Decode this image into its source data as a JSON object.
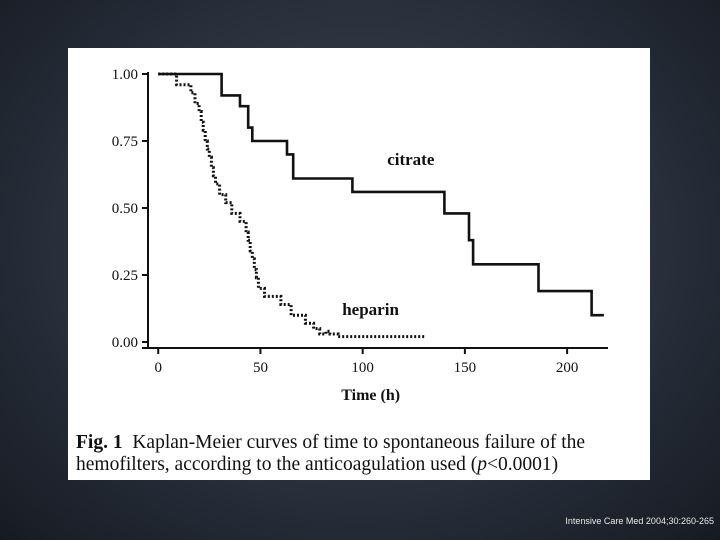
{
  "chart_data": {
    "type": "line",
    "subtype": "step",
    "title": "",
    "xlabel": "Time (h)",
    "ylabel": "",
    "xlim": [
      -5,
      220
    ],
    "ylim": [
      0,
      1
    ],
    "x_ticks": [
      "0",
      "50",
      "100",
      "150",
      "200"
    ],
    "y_ticks": [
      "0.00",
      "0.25",
      "0.50",
      "0.75",
      "1.00"
    ],
    "grid": false,
    "legend": "inline labels next to curves",
    "series": [
      {
        "name": "citrate",
        "style": "solid",
        "color": "#111111",
        "x": [
          0,
          31,
          31,
          40,
          40,
          44,
          44,
          46,
          46,
          63,
          63,
          66,
          66,
          95,
          95,
          140,
          140,
          152,
          152,
          154,
          154,
          186,
          186,
          212,
          212,
          218
        ],
        "y": [
          1.0,
          1.0,
          0.92,
          0.92,
          0.88,
          0.88,
          0.8,
          0.8,
          0.75,
          0.75,
          0.7,
          0.7,
          0.61,
          0.61,
          0.56,
          0.56,
          0.48,
          0.48,
          0.38,
          0.38,
          0.29,
          0.29,
          0.19,
          0.19,
          0.1,
          0.1
        ]
      },
      {
        "name": "heparin",
        "style": "dotted",
        "color": "#111111",
        "x": [
          0,
          9,
          9,
          16,
          16,
          18,
          18,
          20,
          20,
          21,
          21,
          22,
          22,
          23,
          23,
          24,
          24,
          25,
          25,
          26,
          26,
          27,
          27,
          28,
          28,
          30,
          30,
          33,
          33,
          36,
          36,
          40,
          40,
          43,
          43,
          44,
          44,
          45,
          45,
          46,
          46,
          47,
          47,
          48,
          48,
          49,
          49,
          52,
          52,
          60,
          60,
          65,
          65,
          72,
          72,
          76,
          76,
          79,
          79,
          82,
          82,
          84,
          84,
          88,
          88,
          131
        ],
        "y": [
          1.0,
          1.0,
          0.96,
          0.96,
          0.93,
          0.93,
          0.89,
          0.89,
          0.86,
          0.86,
          0.82,
          0.82,
          0.79,
          0.79,
          0.75,
          0.75,
          0.72,
          0.72,
          0.69,
          0.69,
          0.65,
          0.65,
          0.62,
          0.62,
          0.59,
          0.59,
          0.55,
          0.55,
          0.52,
          0.52,
          0.48,
          0.48,
          0.45,
          0.45,
          0.41,
          0.41,
          0.38,
          0.38,
          0.34,
          0.34,
          0.31,
          0.31,
          0.27,
          0.27,
          0.24,
          0.24,
          0.2,
          0.2,
          0.17,
          0.17,
          0.14,
          0.14,
          0.1,
          0.1,
          0.07,
          0.07,
          0.05,
          0.05,
          0.03,
          0.03,
          0.04,
          0.04,
          0.03,
          0.03,
          0.02,
          0.02
        ]
      }
    ]
  },
  "caption": {
    "label": "Fig. 1",
    "text_part1": "Kaplan-Meier curves of time to spontaneous failure of the hemofilters, according to the anticoagulation used (",
    "p_variable": "p",
    "text_part2": "<0.0001)"
  },
  "citation": "Intensive Care Med 2004;30:260-265"
}
